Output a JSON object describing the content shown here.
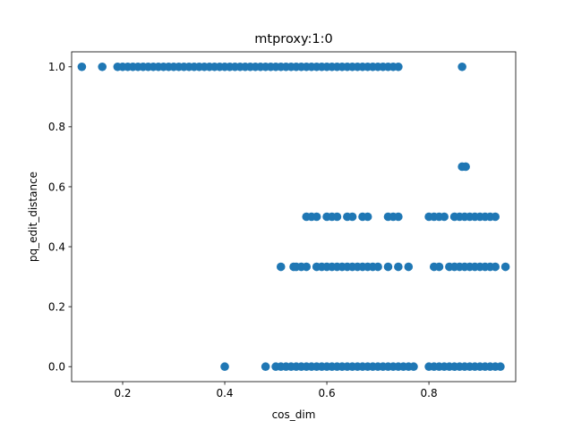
{
  "chart_data": {
    "type": "scatter",
    "title": "mtproxy:1:0",
    "xlabel": "cos_dim",
    "ylabel": "pq_edit_distance",
    "xlim": [
      0.1,
      0.97
    ],
    "ylim": [
      -0.05,
      1.05
    ],
    "xticks": [
      0.2,
      0.4,
      0.6,
      0.8
    ],
    "xtick_labels": [
      "0.2",
      "0.4",
      "0.6",
      "0.8"
    ],
    "yticks": [
      0.0,
      0.2,
      0.4,
      0.6,
      0.8,
      1.0
    ],
    "ytick_labels": [
      "0.0",
      "0.2",
      "0.4",
      "0.6",
      "0.8",
      "1.0"
    ],
    "grid": false,
    "marker_color": "#1f77b4",
    "series": [
      {
        "points": [
          [
            0.12,
            1.0
          ],
          [
            0.16,
            1.0
          ],
          [
            0.19,
            1.0
          ],
          [
            0.2,
            1.0
          ],
          [
            0.21,
            1.0
          ],
          [
            0.22,
            1.0
          ],
          [
            0.23,
            1.0
          ],
          [
            0.24,
            1.0
          ],
          [
            0.25,
            1.0
          ],
          [
            0.26,
            1.0
          ],
          [
            0.27,
            1.0
          ],
          [
            0.28,
            1.0
          ],
          [
            0.29,
            1.0
          ],
          [
            0.3,
            1.0
          ],
          [
            0.31,
            1.0
          ],
          [
            0.32,
            1.0
          ],
          [
            0.33,
            1.0
          ],
          [
            0.34,
            1.0
          ],
          [
            0.35,
            1.0
          ],
          [
            0.36,
            1.0
          ],
          [
            0.37,
            1.0
          ],
          [
            0.38,
            1.0
          ],
          [
            0.39,
            1.0
          ],
          [
            0.4,
            1.0
          ],
          [
            0.41,
            1.0
          ],
          [
            0.42,
            1.0
          ],
          [
            0.43,
            1.0
          ],
          [
            0.44,
            1.0
          ],
          [
            0.45,
            1.0
          ],
          [
            0.46,
            1.0
          ],
          [
            0.47,
            1.0
          ],
          [
            0.48,
            1.0
          ],
          [
            0.49,
            1.0
          ],
          [
            0.5,
            1.0
          ],
          [
            0.51,
            1.0
          ],
          [
            0.52,
            1.0
          ],
          [
            0.53,
            1.0
          ],
          [
            0.54,
            1.0
          ],
          [
            0.55,
            1.0
          ],
          [
            0.56,
            1.0
          ],
          [
            0.57,
            1.0
          ],
          [
            0.58,
            1.0
          ],
          [
            0.59,
            1.0
          ],
          [
            0.6,
            1.0
          ],
          [
            0.61,
            1.0
          ],
          [
            0.62,
            1.0
          ],
          [
            0.63,
            1.0
          ],
          [
            0.64,
            1.0
          ],
          [
            0.65,
            1.0
          ],
          [
            0.66,
            1.0
          ],
          [
            0.67,
            1.0
          ],
          [
            0.68,
            1.0
          ],
          [
            0.69,
            1.0
          ],
          [
            0.7,
            1.0
          ],
          [
            0.71,
            1.0
          ],
          [
            0.72,
            1.0
          ],
          [
            0.73,
            1.0
          ],
          [
            0.74,
            1.0
          ],
          [
            0.865,
            1.0
          ],
          [
            0.865,
            0.667
          ],
          [
            0.872,
            0.667
          ],
          [
            0.56,
            0.5
          ],
          [
            0.57,
            0.5
          ],
          [
            0.58,
            0.5
          ],
          [
            0.6,
            0.5
          ],
          [
            0.61,
            0.5
          ],
          [
            0.62,
            0.5
          ],
          [
            0.64,
            0.5
          ],
          [
            0.65,
            0.5
          ],
          [
            0.67,
            0.5
          ],
          [
            0.68,
            0.5
          ],
          [
            0.72,
            0.5
          ],
          [
            0.73,
            0.5
          ],
          [
            0.74,
            0.5
          ],
          [
            0.8,
            0.5
          ],
          [
            0.81,
            0.5
          ],
          [
            0.82,
            0.5
          ],
          [
            0.83,
            0.5
          ],
          [
            0.85,
            0.5
          ],
          [
            0.86,
            0.5
          ],
          [
            0.87,
            0.5
          ],
          [
            0.88,
            0.5
          ],
          [
            0.89,
            0.5
          ],
          [
            0.9,
            0.5
          ],
          [
            0.91,
            0.5
          ],
          [
            0.92,
            0.5
          ],
          [
            0.93,
            0.5
          ],
          [
            0.51,
            0.333
          ],
          [
            0.535,
            0.333
          ],
          [
            0.54,
            0.333
          ],
          [
            0.55,
            0.333
          ],
          [
            0.56,
            0.333
          ],
          [
            0.58,
            0.333
          ],
          [
            0.59,
            0.333
          ],
          [
            0.6,
            0.333
          ],
          [
            0.61,
            0.333
          ],
          [
            0.62,
            0.333
          ],
          [
            0.63,
            0.333
          ],
          [
            0.64,
            0.333
          ],
          [
            0.65,
            0.333
          ],
          [
            0.66,
            0.333
          ],
          [
            0.67,
            0.333
          ],
          [
            0.68,
            0.333
          ],
          [
            0.69,
            0.333
          ],
          [
            0.7,
            0.333
          ],
          [
            0.72,
            0.333
          ],
          [
            0.74,
            0.333
          ],
          [
            0.76,
            0.333
          ],
          [
            0.81,
            0.333
          ],
          [
            0.82,
            0.333
          ],
          [
            0.84,
            0.333
          ],
          [
            0.85,
            0.333
          ],
          [
            0.86,
            0.333
          ],
          [
            0.87,
            0.333
          ],
          [
            0.88,
            0.333
          ],
          [
            0.89,
            0.333
          ],
          [
            0.9,
            0.333
          ],
          [
            0.91,
            0.333
          ],
          [
            0.92,
            0.333
          ],
          [
            0.93,
            0.333
          ],
          [
            0.95,
            0.333
          ],
          [
            0.4,
            0.0
          ],
          [
            0.48,
            0.0
          ],
          [
            0.5,
            0.0
          ],
          [
            0.51,
            0.0
          ],
          [
            0.52,
            0.0
          ],
          [
            0.53,
            0.0
          ],
          [
            0.54,
            0.0
          ],
          [
            0.55,
            0.0
          ],
          [
            0.56,
            0.0
          ],
          [
            0.57,
            0.0
          ],
          [
            0.58,
            0.0
          ],
          [
            0.59,
            0.0
          ],
          [
            0.6,
            0.0
          ],
          [
            0.61,
            0.0
          ],
          [
            0.62,
            0.0
          ],
          [
            0.63,
            0.0
          ],
          [
            0.64,
            0.0
          ],
          [
            0.65,
            0.0
          ],
          [
            0.66,
            0.0
          ],
          [
            0.67,
            0.0
          ],
          [
            0.68,
            0.0
          ],
          [
            0.69,
            0.0
          ],
          [
            0.7,
            0.0
          ],
          [
            0.71,
            0.0
          ],
          [
            0.72,
            0.0
          ],
          [
            0.73,
            0.0
          ],
          [
            0.74,
            0.0
          ],
          [
            0.75,
            0.0
          ],
          [
            0.76,
            0.0
          ],
          [
            0.77,
            0.0
          ],
          [
            0.8,
            0.0
          ],
          [
            0.81,
            0.0
          ],
          [
            0.82,
            0.0
          ],
          [
            0.83,
            0.0
          ],
          [
            0.84,
            0.0
          ],
          [
            0.85,
            0.0
          ],
          [
            0.86,
            0.0
          ],
          [
            0.87,
            0.0
          ],
          [
            0.88,
            0.0
          ],
          [
            0.89,
            0.0
          ],
          [
            0.9,
            0.0
          ],
          [
            0.91,
            0.0
          ],
          [
            0.92,
            0.0
          ],
          [
            0.93,
            0.0
          ],
          [
            0.94,
            0.0
          ]
        ]
      }
    ]
  }
}
